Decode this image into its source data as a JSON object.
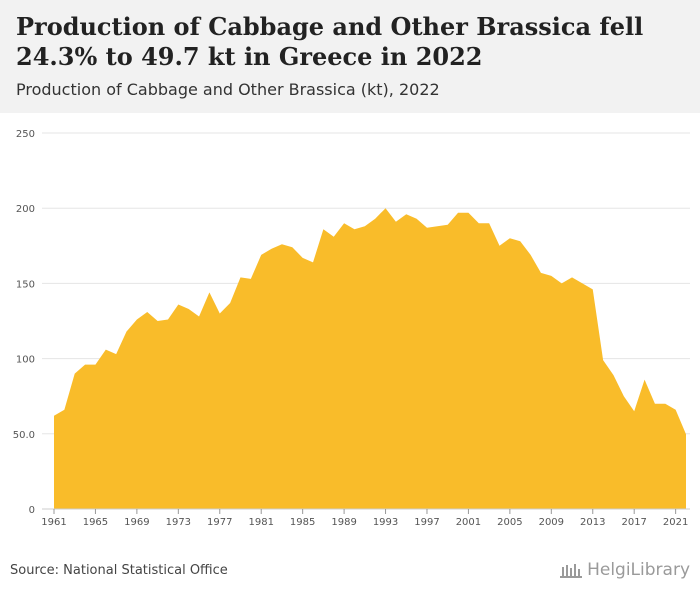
{
  "header": {
    "title": "Production of Cabbage and Other Brassica fell 24.3% to 49.7 kt in Greece in 2022",
    "subtitle": "Production of Cabbage and Other Brassica (kt), 2022"
  },
  "footer": {
    "source": "Source: National Statistical Office",
    "logo_text": "HelgiLibrary"
  },
  "colors": {
    "area": "#f9bc2a",
    "grid": "#e5e5e5",
    "header_bg": "#f2f2f2"
  },
  "chart_data": {
    "type": "area",
    "x": [
      1961,
      1962,
      1963,
      1964,
      1965,
      1966,
      1967,
      1968,
      1969,
      1970,
      1971,
      1972,
      1973,
      1974,
      1975,
      1976,
      1977,
      1978,
      1979,
      1980,
      1981,
      1982,
      1983,
      1984,
      1985,
      1986,
      1987,
      1988,
      1989,
      1990,
      1991,
      1992,
      1993,
      1994,
      1995,
      1996,
      1997,
      1998,
      1999,
      2000,
      2001,
      2002,
      2003,
      2004,
      2005,
      2006,
      2007,
      2008,
      2009,
      2010,
      2011,
      2012,
      2013,
      2014,
      2015,
      2016,
      2017,
      2018,
      2019,
      2020,
      2021,
      2022
    ],
    "series": [
      {
        "values": [
          62,
          66,
          90,
          96,
          96,
          106,
          103,
          118,
          126,
          131,
          125,
          126,
          136,
          133,
          128,
          144,
          130,
          137,
          154,
          153,
          169,
          173,
          176,
          174,
          167,
          164,
          186,
          181,
          190,
          186,
          188,
          193,
          200,
          191,
          196,
          193,
          187,
          188,
          189,
          197,
          197,
          190,
          190,
          175,
          180,
          178,
          169,
          157,
          155,
          150,
          154,
          150,
          146,
          99,
          89,
          75,
          65,
          86,
          70,
          70,
          66,
          49.7
        ]
      }
    ],
    "xticks": [
      "1961",
      "1965",
      "1969",
      "1973",
      "1977",
      "1981",
      "1985",
      "1989",
      "1993",
      "1997",
      "2001",
      "2005",
      "2009",
      "2013",
      "2017",
      "2021"
    ],
    "yticks": [
      "0",
      "50.0",
      "100",
      "150",
      "200",
      "250"
    ],
    "ylim": [
      0,
      250
    ],
    "xlabel": "",
    "ylabel": "",
    "grid": true
  }
}
